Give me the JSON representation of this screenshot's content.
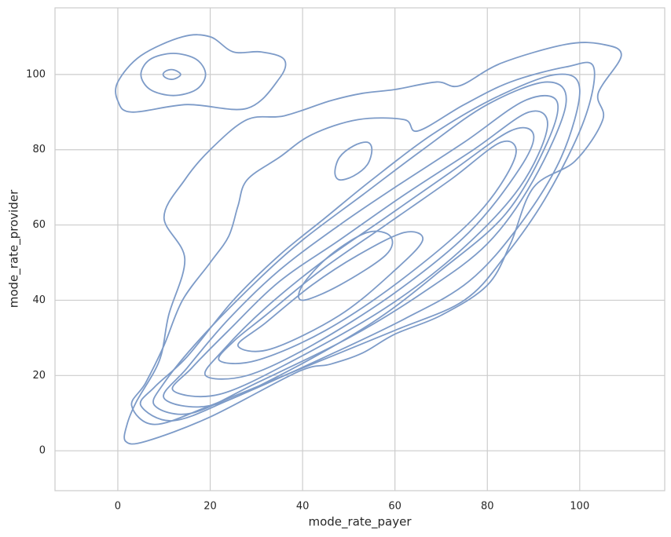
{
  "chart_data": {
    "type": "kde",
    "x_label": "mode_rate_payer",
    "y_label": "mode_rate_provider",
    "xlim": [
      -13.6,
      118.4
    ],
    "ylim": [
      -10.6,
      117.7
    ],
    "xticks": [
      0,
      20,
      40,
      60,
      80,
      100
    ],
    "yticks": [
      0,
      20,
      40,
      60,
      80,
      100
    ],
    "grid": true,
    "color": "#7d9bc8",
    "contours": [
      {
        "x": [
          1.7,
          6,
          20,
          39,
          46,
          53,
          60,
          70,
          80,
          85,
          90,
          99,
          105,
          104,
          109,
          105,
          97,
          83,
          74,
          69,
          60,
          53,
          46,
          36,
          28,
          20,
          14.5,
          10,
          14.5,
          11,
          9,
          4,
          2
        ],
        "y": [
          2.5,
          2.5,
          9,
          21,
          23,
          26,
          31,
          36,
          44,
          55,
          70,
          77,
          88,
          95,
          105,
          108,
          108,
          103,
          97,
          98,
          96,
          95,
          93,
          89,
          88,
          80,
          72,
          62,
          51,
          36,
          24,
          13,
          7
        ]
      },
      {
        "x": [
          0,
          3,
          15,
          28,
          35,
          36,
          31,
          25,
          20,
          14,
          5,
          0
        ],
        "y": [
          93,
          90,
          92,
          91,
          99,
          104,
          106,
          106,
          110,
          110,
          105,
          98
        ]
      },
      {
        "x": [
          12,
          17,
          19,
          17,
          12,
          7,
          5,
          7
        ],
        "y": [
          94.4,
          96,
          100,
          104,
          105.6,
          104,
          100,
          96
        ]
      },
      {
        "x": [
          11.6,
          12.8,
          13.6,
          12.8,
          11.6,
          10.4,
          9.8,
          10.4
        ],
        "y": [
          98.7,
          99.1,
          100,
          100.9,
          101.3,
          100.9,
          100,
          99.1
        ]
      },
      {
        "x": [
          48,
          51,
          54,
          55,
          54,
          51,
          48,
          47
        ],
        "y": [
          72,
          73,
          76,
          80,
          82,
          81,
          78,
          74
        ]
      },
      {
        "x": [
          3,
          8,
          20,
          40,
          60,
          75,
          84,
          93,
          101,
          103,
          97,
          85,
          75,
          65,
          62,
          52,
          42,
          35,
          28,
          26,
          24,
          20,
          14,
          10,
          6
        ],
        "y": [
          12,
          7,
          12,
          22,
          32,
          40,
          52,
          68,
          88,
          102,
          102,
          98,
          92,
          85,
          88,
          88,
          84,
          78,
          72,
          65,
          57,
          50,
          40,
          28,
          18
        ]
      },
      {
        "x": [
          5,
          12,
          25,
          45,
          62,
          76,
          87,
          96,
          100,
          95,
          82,
          68,
          55,
          45,
          35,
          25,
          15,
          8
        ],
        "y": [
          12,
          8,
          14,
          25,
          35,
          45,
          60,
          78,
          96,
          100,
          94,
          84,
          72,
          62,
          52,
          40,
          25,
          17
        ]
      },
      {
        "x": [
          8,
          16,
          30,
          50,
          66,
          80,
          90,
          97,
          93,
          80,
          66,
          53,
          40,
          30,
          18,
          10
        ],
        "y": [
          12,
          10,
          18,
          30,
          42,
          55,
          72,
          92,
          98,
          92,
          80,
          68,
          56,
          45,
          30,
          18
        ]
      },
      {
        "x": [
          10,
          20,
          35,
          55,
          70,
          84,
          93,
          95,
          88,
          75,
          60,
          48,
          35,
          24,
          15
        ],
        "y": [
          14,
          12,
          20,
          34,
          48,
          63,
          82,
          93,
          93,
          82,
          70,
          60,
          48,
          35,
          22
        ]
      },
      {
        "x": [
          12,
          22,
          38,
          58,
          74,
          87,
          93,
          89,
          77,
          62,
          48,
          35,
          24,
          16
        ],
        "y": [
          16,
          15,
          24,
          38,
          53,
          70,
          86,
          90,
          80,
          68,
          56,
          45,
          32,
          22
        ]
      },
      {
        "x": [
          19,
          28,
          42,
          60,
          76,
          87,
          90,
          85,
          72,
          58,
          44,
          32,
          23
        ],
        "y": [
          20,
          20,
          28,
          42,
          58,
          75,
          84,
          85,
          74,
          62,
          50,
          38,
          27
        ]
      },
      {
        "x": [
          22,
          30,
          45,
          62,
          78,
          86,
          83,
          72,
          58,
          44,
          32,
          25
        ],
        "y": [
          24,
          24,
          32,
          46,
          63,
          78,
          82,
          72,
          60,
          48,
          36,
          29
        ]
      },
      {
        "x": [
          26,
          33,
          48,
          60,
          66,
          62,
          52,
          42,
          32
        ],
        "y": [
          28,
          27,
          36,
          48,
          56,
          58,
          52,
          44,
          34
        ]
      },
      {
        "x": [
          40,
          48,
          58,
          59,
          54,
          46,
          40
        ],
        "y": [
          40,
          44,
          52,
          57,
          58,
          52,
          44
        ]
      }
    ]
  }
}
